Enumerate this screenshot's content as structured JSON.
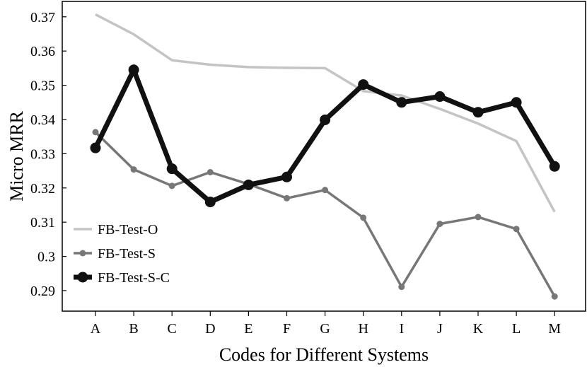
{
  "chart_data": {
    "type": "line",
    "title": "",
    "xlabel": "Codes for Different Systems",
    "ylabel": "Micro MRR",
    "categories": [
      "A",
      "B",
      "C",
      "D",
      "E",
      "F",
      "G",
      "H",
      "I",
      "J",
      "K",
      "L",
      "M"
    ],
    "ylim": [
      0.284,
      0.3745
    ],
    "yticks": [
      0.29,
      0.3,
      0.31,
      0.32,
      0.33,
      0.34,
      0.35,
      0.36,
      0.37
    ],
    "ytick_labels": [
      "0.29",
      "0.3",
      "0.31",
      "0.32",
      "0.33",
      "0.34",
      "0.35",
      "0.36",
      "0.37"
    ],
    "grid": false,
    "legend_position": "bottom-left",
    "series": [
      {
        "name": "FB-Test-O",
        "color": "#c4c4c4",
        "marker": "none",
        "values": [
          0.3707,
          0.3649,
          0.3573,
          0.356,
          0.3553,
          0.3551,
          0.355,
          0.3483,
          0.347,
          0.3431,
          0.3388,
          0.3337,
          0.313
        ]
      },
      {
        "name": "FB-Test-S",
        "color": "#777777",
        "marker": "small-circle",
        "values": [
          0.3363,
          0.3254,
          0.3206,
          0.3246,
          0.3211,
          0.317,
          0.3194,
          0.3113,
          0.2911,
          0.3095,
          0.3115,
          0.308,
          0.2883
        ]
      },
      {
        "name": "FB-Test-S-C",
        "color": "#111111",
        "marker": "large-circle",
        "values": [
          0.3317,
          0.3545,
          0.3256,
          0.3159,
          0.3209,
          0.3232,
          0.3399,
          0.3502,
          0.345,
          0.3467,
          0.3421,
          0.345,
          0.3263
        ]
      }
    ]
  }
}
